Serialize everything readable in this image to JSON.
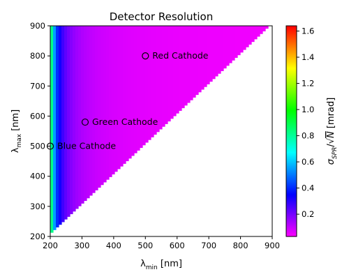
{
  "chart_data": {
    "type": "heatmap",
    "title": "Detector Resolution",
    "xlabel": {
      "base": "λ",
      "sub": "min",
      "unit": " [nm]"
    },
    "ylabel": {
      "base": "λ",
      "sub": "max",
      "unit": " [nm]"
    },
    "colorbar_label": {
      "lead": "σ",
      "sub": "SPR",
      "sep": "/",
      "root": "√",
      "var": "N",
      "unit": " [mrad]"
    },
    "xlim": [
      200,
      900
    ],
    "ylim": [
      200,
      900
    ],
    "x_ticks": [
      "200",
      "300",
      "400",
      "500",
      "600",
      "700",
      "800",
      "900"
    ],
    "y_ticks": [
      "200",
      "300",
      "400",
      "500",
      "600",
      "700",
      "800",
      "900"
    ],
    "colorbar_range": [
      0.03,
      1.64
    ],
    "colorbar_ticks": [
      "0.2",
      "0.4",
      "0.6",
      "0.8",
      "1.0",
      "1.2",
      "1.4",
      "1.6"
    ],
    "colormap": "gist_rainbow_r",
    "region": "lambda_max > lambda_min",
    "points": [
      {
        "label": "Red Cathode",
        "x": 500,
        "y": 800
      },
      {
        "label": "Green Cathode",
        "x": 310,
        "y": 580
      },
      {
        "label": "Blue Cathode",
        "x": 200,
        "y": 500
      }
    ],
    "colors": {
      "marker_edge": "#000000",
      "axis": "#000000"
    }
  }
}
